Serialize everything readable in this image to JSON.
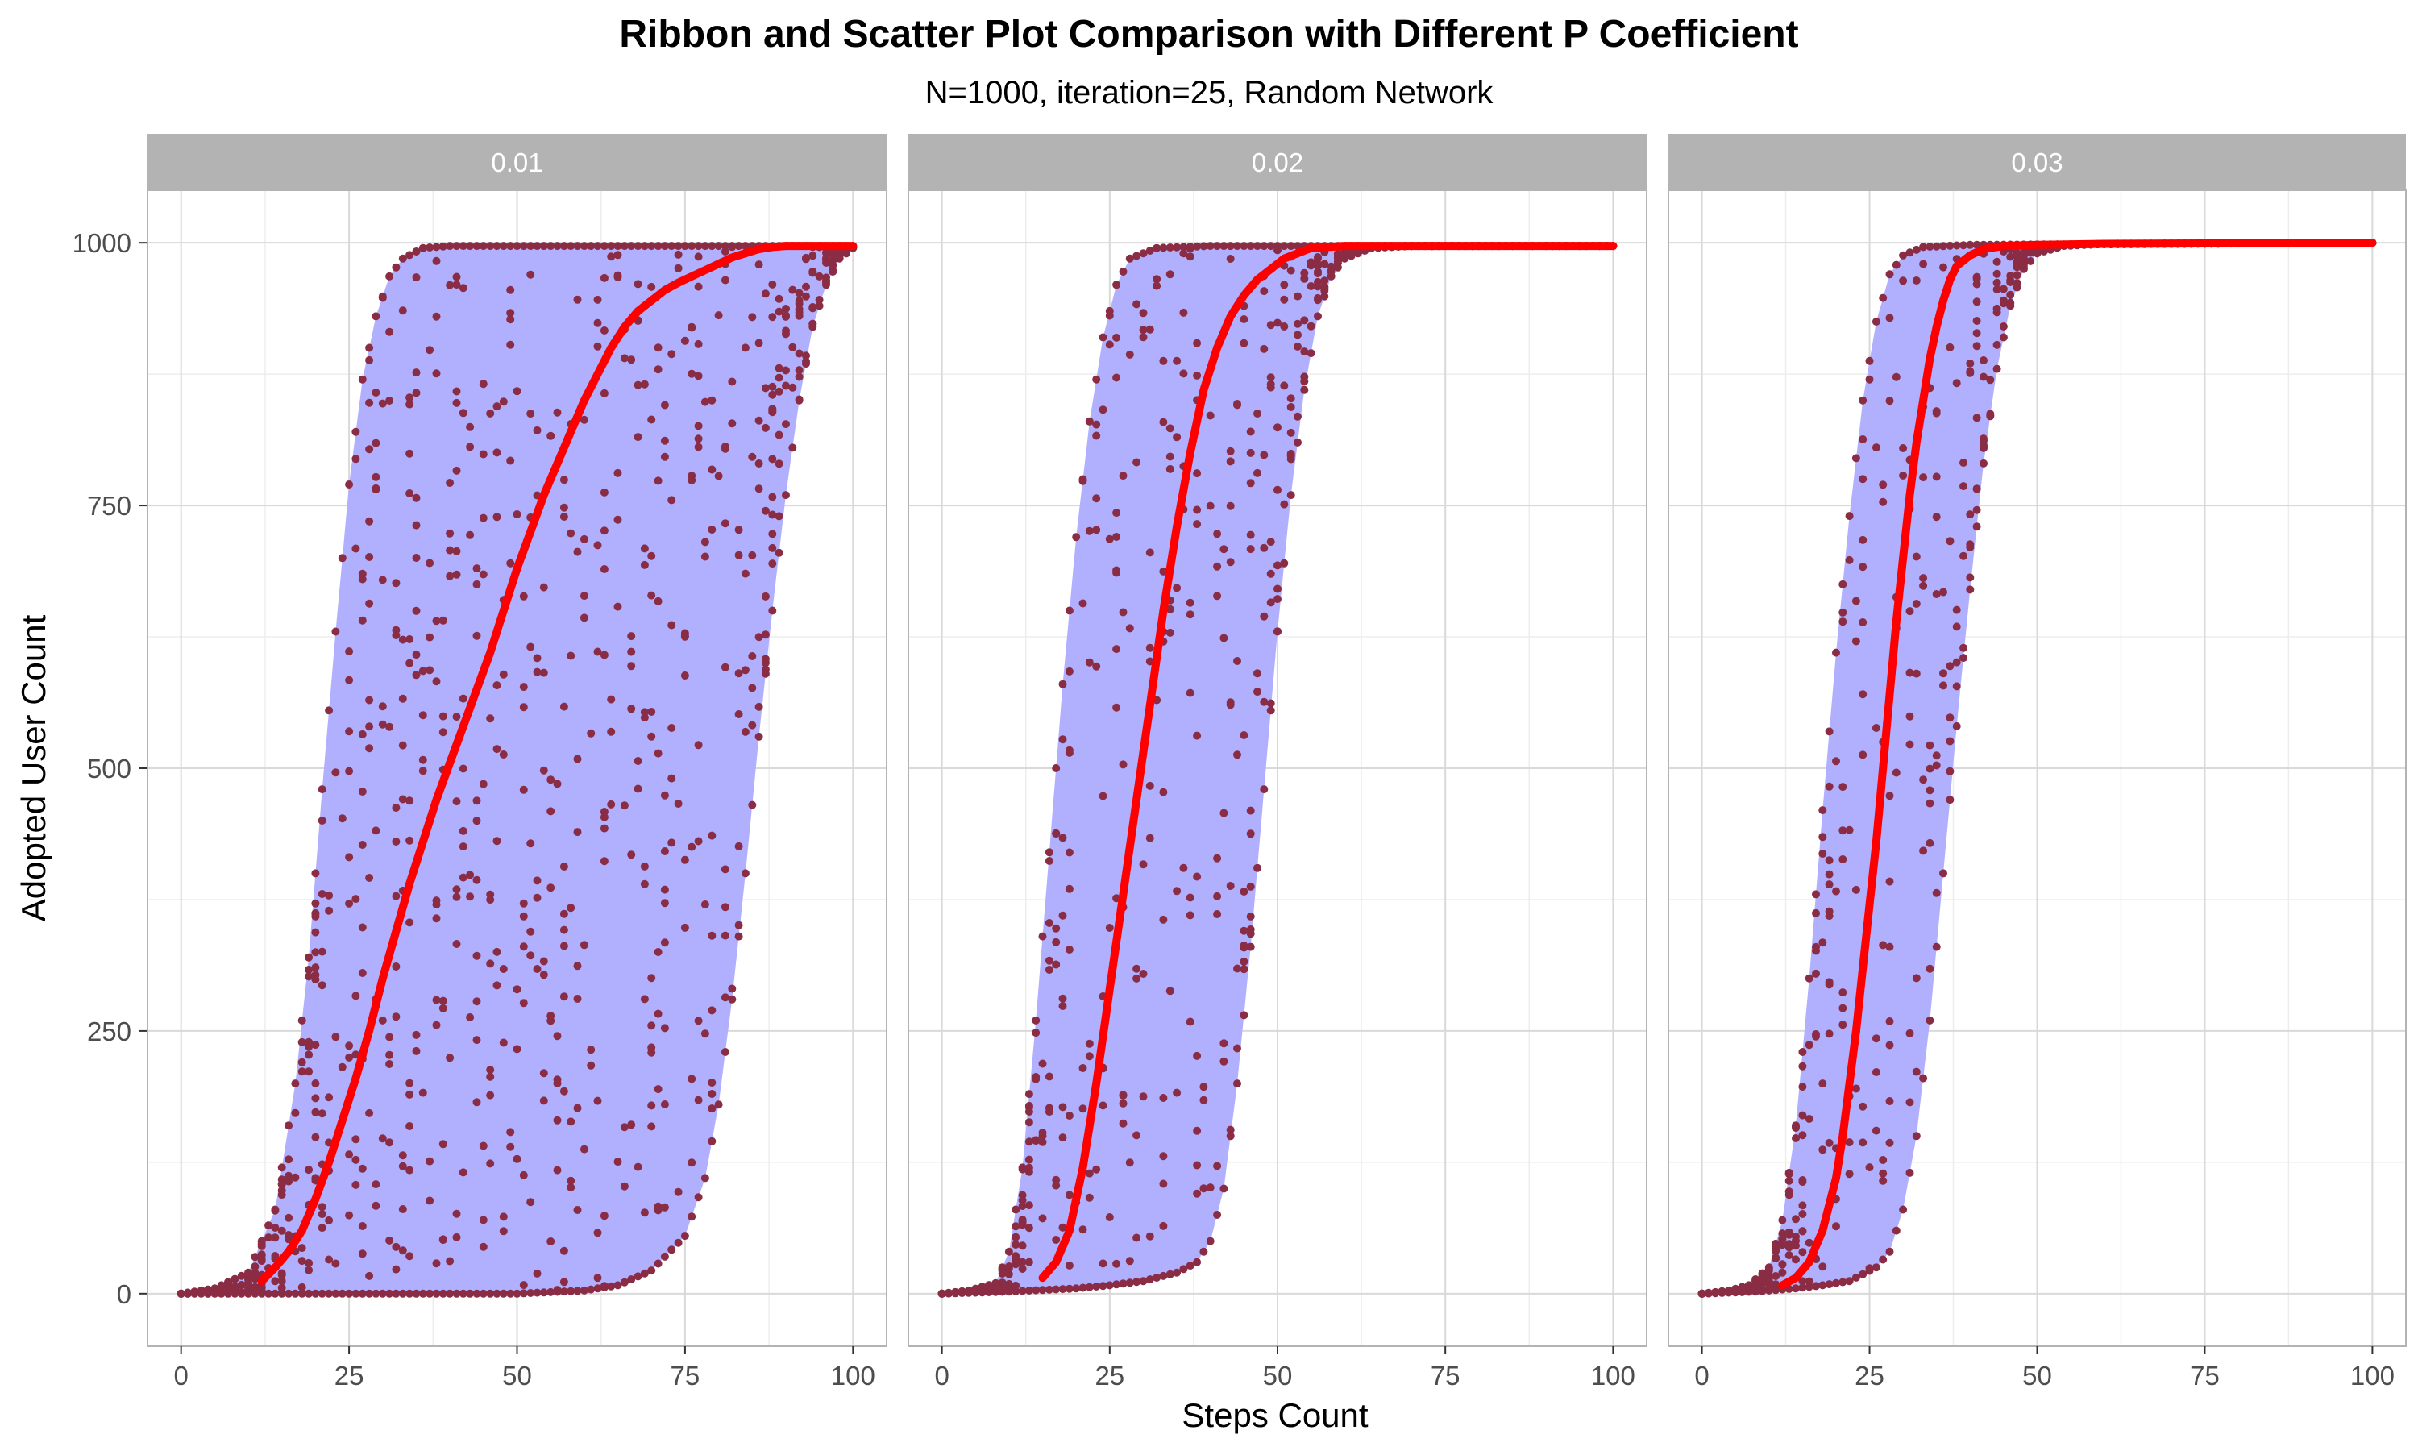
{
  "chart_data": {
    "type": "scatter",
    "title": "Ribbon and Scatter Plot Comparison with Different P Coefficient",
    "subtitle": "N=1000, iteration=25, Random Network",
    "xlabel": "Steps Count",
    "ylabel": "Adopted User Count",
    "xlim": [
      -5,
      105
    ],
    "ylim": [
      -50,
      1050
    ],
    "x_ticks": [
      0,
      25,
      50,
      75,
      100
    ],
    "y_ticks": [
      0,
      250,
      500,
      750,
      1000
    ],
    "grid": true,
    "legend": "none",
    "colors": {
      "ribbon": "#b0b0ff",
      "points": "#8b2c45",
      "mean_line": "#ff0000",
      "strip": "#b3b3b3",
      "strip_text": "#ffffff",
      "grid_major": "#d9d9d9",
      "grid_minor": "#ededed",
      "panel_border": "#b3b3b3",
      "axis_text": "#4d4d4d"
    },
    "panels": [
      {
        "facet_label": "0.01",
        "ribbon_lower": [
          [
            0,
            0
          ],
          [
            10,
            0
          ],
          [
            20,
            0
          ],
          [
            30,
            0
          ],
          [
            40,
            0
          ],
          [
            50,
            0
          ],
          [
            60,
            3
          ],
          [
            65,
            8
          ],
          [
            70,
            22
          ],
          [
            75,
            55
          ],
          [
            78,
            110
          ],
          [
            80,
            180
          ],
          [
            82,
            280
          ],
          [
            84,
            400
          ],
          [
            86,
            530
          ],
          [
            88,
            650
          ],
          [
            90,
            760
          ],
          [
            92,
            850
          ],
          [
            94,
            920
          ],
          [
            96,
            960
          ],
          [
            98,
            985
          ],
          [
            100,
            995
          ]
        ],
        "ribbon_upper": [
          [
            0,
            0
          ],
          [
            5,
            5
          ],
          [
            10,
            20
          ],
          [
            14,
            80
          ],
          [
            17,
            200
          ],
          [
            19,
            320
          ],
          [
            21,
            480
          ],
          [
            23,
            630
          ],
          [
            25,
            770
          ],
          [
            27,
            870
          ],
          [
            29,
            930
          ],
          [
            31,
            968
          ],
          [
            33,
            985
          ],
          [
            36,
            995
          ],
          [
            40,
            997
          ],
          [
            100,
            997
          ]
        ],
        "mean_line": [
          [
            12,
            12
          ],
          [
            14,
            25
          ],
          [
            16,
            40
          ],
          [
            18,
            60
          ],
          [
            20,
            90
          ],
          [
            22,
            125
          ],
          [
            24,
            165
          ],
          [
            26,
            205
          ],
          [
            28,
            250
          ],
          [
            30,
            300
          ],
          [
            32,
            345
          ],
          [
            34,
            390
          ],
          [
            36,
            430
          ],
          [
            38,
            470
          ],
          [
            40,
            505
          ],
          [
            42,
            540
          ],
          [
            44,
            575
          ],
          [
            46,
            610
          ],
          [
            48,
            650
          ],
          [
            50,
            690
          ],
          [
            52,
            725
          ],
          [
            54,
            760
          ],
          [
            56,
            790
          ],
          [
            58,
            820
          ],
          [
            60,
            850
          ],
          [
            62,
            875
          ],
          [
            64,
            900
          ],
          [
            66,
            920
          ],
          [
            68,
            935
          ],
          [
            70,
            945
          ],
          [
            72,
            955
          ],
          [
            74,
            962
          ],
          [
            76,
            968
          ],
          [
            78,
            974
          ],
          [
            80,
            980
          ],
          [
            82,
            986
          ],
          [
            84,
            990
          ],
          [
            86,
            994
          ],
          [
            88,
            996
          ],
          [
            90,
            997
          ],
          [
            95,
            997
          ],
          [
            100,
            997
          ]
        ],
        "scatter_seed": 101,
        "scatter_count": 800
      },
      {
        "facet_label": "0.02",
        "ribbon_lower": [
          [
            0,
            0
          ],
          [
            10,
            2
          ],
          [
            20,
            5
          ],
          [
            25,
            8
          ],
          [
            30,
            12
          ],
          [
            35,
            20
          ],
          [
            38,
            30
          ],
          [
            40,
            50
          ],
          [
            42,
            100
          ],
          [
            44,
            200
          ],
          [
            46,
            330
          ],
          [
            48,
            480
          ],
          [
            50,
            630
          ],
          [
            52,
            760
          ],
          [
            54,
            860
          ],
          [
            56,
            930
          ],
          [
            58,
            968
          ],
          [
            60,
            985
          ],
          [
            64,
            995
          ],
          [
            70,
            997
          ],
          [
            100,
            997
          ]
        ],
        "ribbon_upper": [
          [
            0,
            0
          ],
          [
            4,
            3
          ],
          [
            8,
            10
          ],
          [
            10,
            40
          ],
          [
            12,
            120
          ],
          [
            14,
            260
          ],
          [
            16,
            420
          ],
          [
            18,
            580
          ],
          [
            20,
            720
          ],
          [
            22,
            830
          ],
          [
            24,
            910
          ],
          [
            26,
            960
          ],
          [
            28,
            985
          ],
          [
            32,
            995
          ],
          [
            40,
            997
          ],
          [
            100,
            997
          ]
        ],
        "mean_line": [
          [
            15,
            15
          ],
          [
            17,
            30
          ],
          [
            19,
            60
          ],
          [
            21,
            120
          ],
          [
            23,
            200
          ],
          [
            25,
            290
          ],
          [
            27,
            380
          ],
          [
            29,
            470
          ],
          [
            31,
            560
          ],
          [
            33,
            650
          ],
          [
            35,
            730
          ],
          [
            37,
            800
          ],
          [
            39,
            860
          ],
          [
            41,
            900
          ],
          [
            43,
            930
          ],
          [
            45,
            950
          ],
          [
            47,
            965
          ],
          [
            49,
            975
          ],
          [
            51,
            985
          ],
          [
            53,
            990
          ],
          [
            55,
            995
          ],
          [
            60,
            997
          ],
          [
            100,
            997
          ]
        ],
        "scatter_seed": 202,
        "scatter_count": 700
      },
      {
        "facet_label": "0.03",
        "ribbon_lower": [
          [
            0,
            0
          ],
          [
            8,
            2
          ],
          [
            14,
            5
          ],
          [
            18,
            8
          ],
          [
            22,
            12
          ],
          [
            26,
            25
          ],
          [
            28,
            40
          ],
          [
            30,
            80
          ],
          [
            32,
            150
          ],
          [
            34,
            260
          ],
          [
            36,
            400
          ],
          [
            38,
            540
          ],
          [
            40,
            670
          ],
          [
            42,
            790
          ],
          [
            44,
            880
          ],
          [
            46,
            940
          ],
          [
            48,
            975
          ],
          [
            50,
            990
          ],
          [
            54,
            997
          ],
          [
            60,
            999
          ],
          [
            100,
            1000
          ]
        ],
        "ribbon_upper": [
          [
            0,
            0
          ],
          [
            4,
            3
          ],
          [
            7,
            8
          ],
          [
            10,
            25
          ],
          [
            12,
            70
          ],
          [
            14,
            160
          ],
          [
            16,
            300
          ],
          [
            18,
            460
          ],
          [
            20,
            610
          ],
          [
            22,
            740
          ],
          [
            24,
            850
          ],
          [
            26,
            925
          ],
          [
            28,
            970
          ],
          [
            30,
            988
          ],
          [
            33,
            996
          ],
          [
            40,
            998
          ],
          [
            100,
            1000
          ]
        ],
        "mean_line": [
          [
            12,
            8
          ],
          [
            14,
            15
          ],
          [
            16,
            30
          ],
          [
            18,
            60
          ],
          [
            20,
            110
          ],
          [
            21,
            150
          ],
          [
            22,
            200
          ],
          [
            23,
            250
          ],
          [
            24,
            310
          ],
          [
            25,
            370
          ],
          [
            26,
            430
          ],
          [
            27,
            500
          ],
          [
            28,
            570
          ],
          [
            29,
            640
          ],
          [
            30,
            700
          ],
          [
            31,
            760
          ],
          [
            32,
            810
          ],
          [
            33,
            850
          ],
          [
            34,
            890
          ],
          [
            35,
            920
          ],
          [
            36,
            945
          ],
          [
            37,
            965
          ],
          [
            38,
            978
          ],
          [
            40,
            988
          ],
          [
            42,
            994
          ],
          [
            45,
            997
          ],
          [
            50,
            998
          ],
          [
            60,
            999
          ],
          [
            100,
            1000
          ]
        ],
        "scatter_seed": 303,
        "scatter_count": 700
      }
    ]
  }
}
